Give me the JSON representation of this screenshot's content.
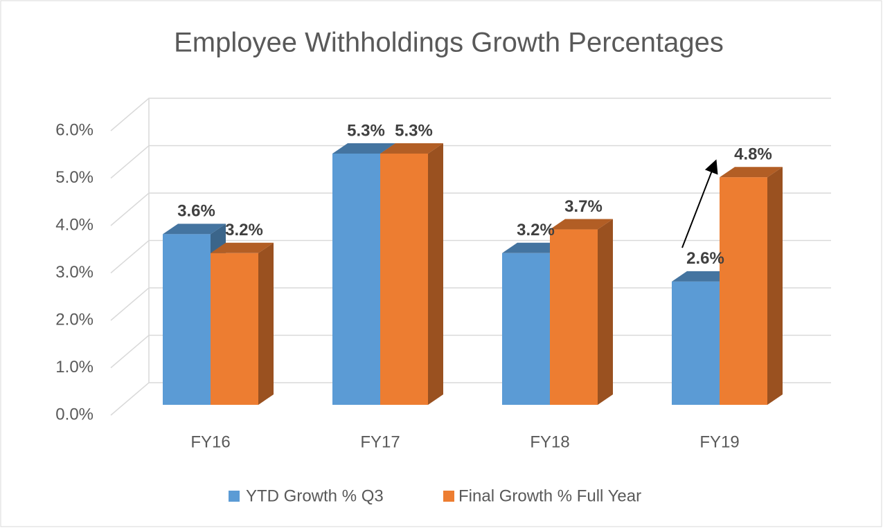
{
  "chart_data": {
    "type": "bar3d",
    "title": "Employee Withholdings Growth Percentages",
    "categories": [
      "FY16",
      "FY17",
      "FY18",
      "FY19"
    ],
    "series": [
      {
        "name": "YTD Growth % Q3",
        "color": "#5b9bd5",
        "values": [
          3.6,
          5.3,
          3.2,
          2.6
        ],
        "value_labels": [
          "3.6%",
          "5.3%",
          "3.2%",
          "2.6%"
        ]
      },
      {
        "name": "Final Growth % Full Year",
        "color": "#ed7d31",
        "values": [
          3.2,
          5.3,
          3.7,
          4.8
        ],
        "value_labels": [
          "3.2%",
          "5.3%",
          "3.7%",
          "4.8%"
        ]
      }
    ],
    "ylim": [
      0,
      6
    ],
    "yticks": [
      {
        "value": 0,
        "label": "0.0%"
      },
      {
        "value": 1,
        "label": "1.0%"
      },
      {
        "value": 2,
        "label": "2.0%"
      },
      {
        "value": 3,
        "label": "3.0%"
      },
      {
        "value": 4,
        "label": "4.0%"
      },
      {
        "value": 5,
        "label": "5.0%"
      },
      {
        "value": 6,
        "label": "6.0%"
      }
    ],
    "grid": true,
    "legend": "bottom"
  }
}
